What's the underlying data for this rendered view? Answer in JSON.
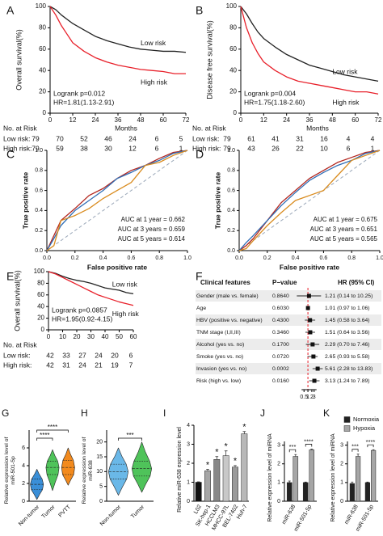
{
  "chart_data": [
    {
      "type": "survival",
      "panel": "A",
      "ylabel": "Overall survival(%)",
      "xlim": [
        0,
        72
      ],
      "xticks": [
        0,
        12,
        24,
        36,
        48,
        60,
        72
      ],
      "ylim": [
        0,
        100
      ],
      "yticks": [
        0,
        20,
        40,
        60,
        80,
        100
      ],
      "series": [
        {
          "name": "Low risk",
          "color": "#222222",
          "x": [
            0,
            3,
            6,
            9,
            12,
            18,
            24,
            30,
            36,
            42,
            48,
            54,
            60,
            66,
            72
          ],
          "values": [
            100,
            97,
            92,
            88,
            84,
            78,
            72,
            68,
            65,
            62,
            60,
            59,
            58,
            58,
            57
          ]
        },
        {
          "name": "High risk",
          "color": "#e8202a",
          "x": [
            0,
            3,
            6,
            9,
            12,
            18,
            24,
            30,
            36,
            42,
            48,
            54,
            60,
            66,
            72
          ],
          "values": [
            100,
            92,
            82,
            74,
            66,
            58,
            52,
            48,
            45,
            43,
            41,
            40,
            39,
            37,
            37
          ]
        }
      ],
      "annotations": [
        "Logrank p=0.012",
        "HR=1.81(1.13-2.91)"
      ],
      "risk_table": {
        "title": "No. at Risk",
        "unit": "Months",
        "rows": [
          {
            "label": "Low risk:",
            "values": [
              79,
              70,
              52,
              46,
              24,
              6,
              5
            ]
          },
          {
            "label": "High risk:",
            "values": [
              79,
              59,
              38,
              30,
              12,
              6,
              1
            ]
          }
        ]
      }
    },
    {
      "type": "survival",
      "panel": "B",
      "ylabel": "Disease free survival(%)",
      "xlim": [
        0,
        72
      ],
      "xticks": [
        0,
        12,
        24,
        36,
        48,
        60,
        72
      ],
      "ylim": [
        0,
        100
      ],
      "yticks": [
        0,
        20,
        40,
        60,
        80,
        100
      ],
      "series": [
        {
          "name": "Low risk",
          "color": "#222222",
          "x": [
            0,
            3,
            6,
            9,
            12,
            18,
            24,
            30,
            36,
            42,
            48,
            54,
            60,
            66,
            72
          ],
          "values": [
            100,
            93,
            84,
            76,
            70,
            62,
            55,
            50,
            45,
            42,
            39,
            36,
            34,
            32,
            30
          ]
        },
        {
          "name": "High risk",
          "color": "#e8202a",
          "x": [
            0,
            3,
            6,
            9,
            12,
            18,
            24,
            30,
            36,
            42,
            48,
            54,
            60,
            66,
            72
          ],
          "values": [
            100,
            80,
            66,
            56,
            48,
            40,
            34,
            30,
            28,
            26,
            24,
            22,
            20,
            20,
            18
          ]
        }
      ],
      "annotations": [
        "Logrank p=0.004",
        "HR=1.75(1.18-2.60)"
      ],
      "risk_table": {
        "title": "No. at Risk",
        "unit": "Months",
        "rows": [
          {
            "label": "Low risk:",
            "values": [
              79,
              61,
              41,
              31,
              16,
              4,
              4
            ]
          },
          {
            "label": "High risk:",
            "values": [
              79,
              43,
              26,
              22,
              10,
              6,
              1
            ]
          }
        ]
      }
    },
    {
      "type": "roc",
      "panel": "C",
      "xlabel": "False positive rate",
      "ylabel": "True positive rate",
      "xlim": [
        0,
        1
      ],
      "ylim": [
        0,
        1
      ],
      "xticks": [
        {
          "value": 0,
          "label": "0.0"
        },
        0.2,
        0.4,
        0.6,
        0.8,
        {
          "value": 1,
          "label": "1.0"
        }
      ],
      "yticks": [
        {
          "value": 0,
          "label": "0.0"
        },
        0.2,
        0.4,
        0.6,
        0.8,
        {
          "value": 1,
          "label": "1.0"
        }
      ],
      "x": [
        0,
        0.05,
        0.1,
        0.2,
        0.3,
        0.4,
        0.5,
        0.6,
        0.7,
        0.8,
        0.9,
        1
      ],
      "series": [
        {
          "name": "AUC at 1 year = 0.662",
          "color": "#b3261e",
          "values": [
            0,
            0.15,
            0.3,
            0.42,
            0.55,
            0.62,
            0.72,
            0.8,
            0.85,
            0.92,
            0.98,
            1
          ]
        },
        {
          "name": "AUC at 3 years = 0.659",
          "color": "#2f6db5",
          "values": [
            0,
            0.12,
            0.25,
            0.4,
            0.5,
            0.6,
            0.72,
            0.78,
            0.85,
            0.9,
            0.97,
            1
          ]
        },
        {
          "name": "AUC at 5 years = 0.614",
          "color": "#d98b1e",
          "values": [
            0,
            0.05,
            0.3,
            0.35,
            0.42,
            0.52,
            0.6,
            0.68,
            0.85,
            0.88,
            0.95,
            1
          ]
        }
      ]
    },
    {
      "type": "roc",
      "panel": "D",
      "xlabel": "False positive rate",
      "ylabel": "True positive rate",
      "xlim": [
        0,
        1
      ],
      "ylim": [
        0,
        1
      ],
      "xticks": [
        {
          "value": 0,
          "label": "0.0"
        },
        0.2,
        0.4,
        0.6,
        0.8,
        {
          "value": 1,
          "label": "1.0"
        }
      ],
      "yticks": [
        {
          "value": 0,
          "label": "0.0"
        },
        0.2,
        0.4,
        0.6,
        0.8,
        {
          "value": 1,
          "label": "1.0"
        }
      ],
      "x": [
        0,
        0.05,
        0.1,
        0.2,
        0.3,
        0.4,
        0.5,
        0.6,
        0.7,
        0.8,
        0.9,
        1
      ],
      "series": [
        {
          "name": "AUC at 1 year = 0.675",
          "color": "#b3261e",
          "values": [
            0,
            0.05,
            0.12,
            0.3,
            0.48,
            0.6,
            0.72,
            0.8,
            0.88,
            0.93,
            0.98,
            1
          ]
        },
        {
          "name": "AUC at 3 years = 0.651",
          "color": "#2f6db5",
          "values": [
            0,
            0.08,
            0.15,
            0.3,
            0.45,
            0.58,
            0.7,
            0.78,
            0.85,
            0.9,
            0.97,
            1
          ]
        },
        {
          "name": "AUC at 5 years = 0.565",
          "color": "#d98b1e",
          "values": [
            0,
            0.02,
            0.1,
            0.25,
            0.38,
            0.5,
            0.55,
            0.6,
            0.75,
            0.9,
            0.95,
            1
          ]
        }
      ]
    },
    {
      "type": "survival",
      "panel": "E",
      "ylabel": "Overall survival(%)",
      "xlim": [
        0,
        60
      ],
      "xticks": [
        0,
        10,
        20,
        30,
        40,
        50,
        60
      ],
      "ylim": [
        0,
        100
      ],
      "yticks": [
        0,
        20,
        40,
        60,
        80,
        100
      ],
      "series": [
        {
          "name": "Low risk",
          "color": "#222222",
          "x": [
            0,
            5,
            10,
            15,
            20,
            25,
            30,
            35,
            40,
            45,
            50,
            55,
            60
          ],
          "values": [
            100,
            97,
            92,
            88,
            85,
            83,
            80,
            76,
            72,
            70,
            68,
            64,
            62
          ]
        },
        {
          "name": "High risk",
          "color": "#e8202a",
          "x": [
            0,
            5,
            10,
            15,
            20,
            25,
            30,
            35,
            40,
            45,
            50,
            55,
            60
          ],
          "values": [
            100,
            96,
            90,
            84,
            78,
            72,
            66,
            60,
            56,
            52,
            48,
            45,
            42
          ]
        }
      ],
      "annotations": [
        "Logrank p=0.0857",
        "HR=1.95(0.92-4.15)"
      ],
      "risk_table": {
        "title": "No. at Risk",
        "rows": [
          {
            "label": "Low risk:",
            "values": [
              42,
              33,
              27,
              24,
              20,
              6
            ]
          },
          {
            "label": "High risk:",
            "values": [
              42,
              31,
              24,
              21,
              19,
              7
            ]
          }
        ]
      }
    },
    {
      "type": "forest",
      "panel": "F",
      "headers": [
        "Clinical features",
        "P−value",
        "HR (95% CI)"
      ],
      "features": [
        "Gender (male vs. female)",
        "Age",
        "HBV (positive vs. negative)",
        "TNM stage (I,II,III)",
        "Alcohol (yes vs. no)",
        "Smoke (yes vs. no)",
        "Invasion (yes vs. no)",
        "Risk (high vs. low)"
      ],
      "p_values": [
        "0.8640",
        "0.6030",
        "0.4300",
        "0.3460",
        "0.1700",
        "0.0720",
        "0.0002",
        "0.0160"
      ],
      "hr_labels": [
        "1.21 (0.14 to 10.25)",
        "1.01 (0.97 to 1.06)",
        "1.45 (0.58 to 3.64)",
        "1.51 (0.64 to 3.56)",
        "2.29 (0.70 to 7.46)",
        "2.65 (0.93 to 5.58)",
        "5.61 (2.28 to 13.83)",
        "3.13 (1.24 to 7.89)"
      ],
      "hr": [
        1.21,
        1.01,
        1.45,
        1.51,
        2.29,
        2.65,
        5.61,
        3.13
      ],
      "lower": [
        0.14,
        0.97,
        0.58,
        0.64,
        0.7,
        0.93,
        2.28,
        1.24
      ],
      "upper": [
        10.25,
        1.06,
        3.64,
        3.56,
        7.46,
        5.58,
        13.83,
        7.89
      ],
      "xscale": "log",
      "xlim": [
        0.1,
        15
      ],
      "xticks": [
        0.5,
        1,
        2,
        3
      ],
      "reference": 1,
      "reference_color": "#e8202a"
    },
    {
      "type": "violin",
      "panel": "G",
      "ylabel": [
        "Relative expression level of",
        "miR-501-5p"
      ],
      "categories": [
        "Non-tumor",
        "Tumor",
        "PVTT"
      ],
      "colors": [
        "#3a8fd8",
        "#4fc35a",
        "#f28a1e"
      ],
      "min": [
        0.2,
        1.2,
        1.8
      ],
      "q1": [
        1.3,
        3.0,
        3.0
      ],
      "median": [
        1.9,
        3.8,
        3.8
      ],
      "q3": [
        2.5,
        4.5,
        4.6
      ],
      "max": [
        3.6,
        5.8,
        6.0
      ],
      "ylim": [
        0,
        8
      ],
      "yticks": [
        0,
        2,
        4,
        6
      ],
      "significance": [
        "****",
        "****"
      ]
    },
    {
      "type": "violin",
      "panel": "H",
      "ylabel": [
        "Relative expression level of",
        "miR-638"
      ],
      "categories": [
        "Non-tumor",
        "Tumor"
      ],
      "colors": [
        "#6ab8e8",
        "#4fc35a"
      ],
      "min": [
        2,
        3
      ],
      "q1": [
        7.5,
        8.5
      ],
      "median": [
        10,
        11
      ],
      "q3": [
        12.5,
        13.5
      ],
      "max": [
        18,
        20
      ],
      "ylim": [
        0,
        24
      ],
      "yticks": [
        0,
        5,
        10,
        15,
        20
      ],
      "significance": [
        "***"
      ]
    },
    {
      "type": "bar",
      "panel": "I",
      "ylabel": "Relative miR-638 expression level",
      "categories": [
        "L02",
        "SK-hep-1",
        "HCCLM3",
        "MHCC-97L",
        "BEL-7402",
        "Huh-7"
      ],
      "colors": [
        "#111111",
        "#a6a6a6",
        "#888888",
        "#c8c8c8",
        "#9a9a9a",
        "#b8b8b8"
      ],
      "values": [
        1.0,
        1.6,
        2.2,
        2.4,
        1.8,
        3.55
      ],
      "errors": [
        0.02,
        0.08,
        0.15,
        0.25,
        0.08,
        0.12
      ],
      "significance": [
        null,
        "*",
        "*",
        "*",
        "*",
        "*"
      ],
      "ylim": [
        0,
        4
      ],
      "yticks": [
        0,
        1,
        2,
        3,
        4
      ]
    },
    {
      "type": "bar",
      "panel": "J",
      "ylabel": "Relative expression level of miRNA",
      "categories": [
        "miR-638",
        "miR-501-5p"
      ],
      "series": [
        {
          "name": "Normoxia",
          "color": "#222222",
          "values": [
            1.0,
            1.0
          ],
          "errors": [
            0.08,
            0.03
          ]
        },
        {
          "name": "Hypoxia",
          "color": "#a6a6a6",
          "values": [
            2.4,
            2.75
          ],
          "errors": [
            0.1,
            0.04
          ]
        }
      ],
      "significance": [
        "***",
        "****"
      ],
      "ylim": [
        0,
        3.2
      ],
      "yticks": [
        0,
        1,
        2,
        3
      ]
    },
    {
      "type": "bar",
      "panel": "K",
      "ylabel": "Relative expression level of miRNA",
      "categories": [
        "miR-638",
        "miR-501-5p"
      ],
      "series": [
        {
          "name": "Normoxia",
          "color": "#222222",
          "values": [
            0.95,
            1.0
          ],
          "errors": [
            0.08,
            0.03
          ]
        },
        {
          "name": "Hypoxia",
          "color": "#a6a6a6",
          "values": [
            2.4,
            2.72
          ],
          "errors": [
            0.12,
            0.04
          ]
        }
      ],
      "significance": [
        "***",
        "****"
      ],
      "ylim": [
        0,
        3.2
      ],
      "yticks": [
        0,
        1,
        2,
        3
      ],
      "legend": "top-right"
    }
  ]
}
